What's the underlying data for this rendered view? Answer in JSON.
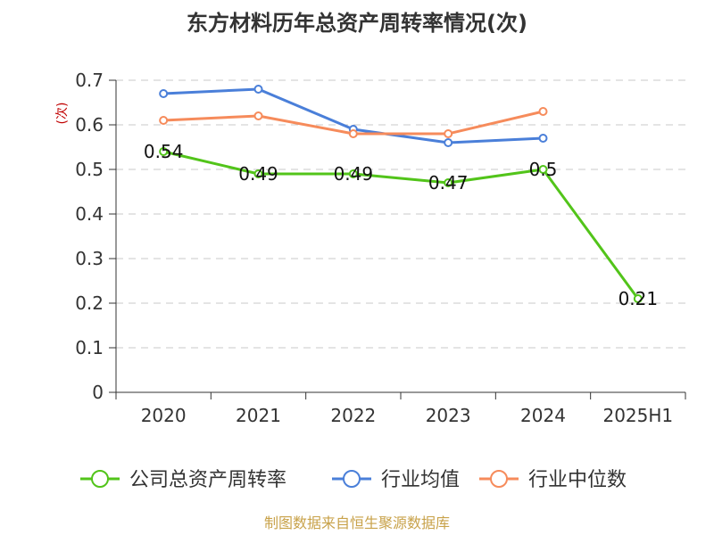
{
  "chart_data": {
    "type": "line",
    "title": "东方材料历年总资产周转率情况(次)",
    "ylabel": "(次)",
    "xlabel": "",
    "categories": [
      "2020",
      "2021",
      "2022",
      "2023",
      "2024",
      "2025H1"
    ],
    "ylim": [
      0,
      0.7
    ],
    "yticks": [
      0,
      0.1,
      0.2,
      0.3,
      0.4,
      0.5,
      0.6,
      0.7
    ],
    "ytick_labels": [
      "0",
      "0.1",
      "0.2",
      "0.3",
      "0.4",
      "0.5",
      "0.6",
      "0.7"
    ],
    "grid": true,
    "legend_position": "bottom",
    "series": [
      {
        "name": "公司总资产周转率",
        "color": "#52c41a",
        "values": [
          0.54,
          0.49,
          0.49,
          0.47,
          0.5,
          0.21
        ],
        "labels": [
          "0.54",
          "0.49",
          "0.49",
          "0.47",
          "0.5",
          "0.21"
        ],
        "show_labels": true
      },
      {
        "name": "行业均值",
        "color": "#4a7fd9",
        "values": [
          0.67,
          0.68,
          0.59,
          0.56,
          0.57,
          null
        ],
        "show_labels": false
      },
      {
        "name": "行业中位数",
        "color": "#f68b5b",
        "values": [
          0.61,
          0.62,
          0.58,
          0.58,
          0.63,
          null
        ],
        "show_labels": false
      }
    ],
    "source": "制图数据来自恒生聚源数据库"
  }
}
